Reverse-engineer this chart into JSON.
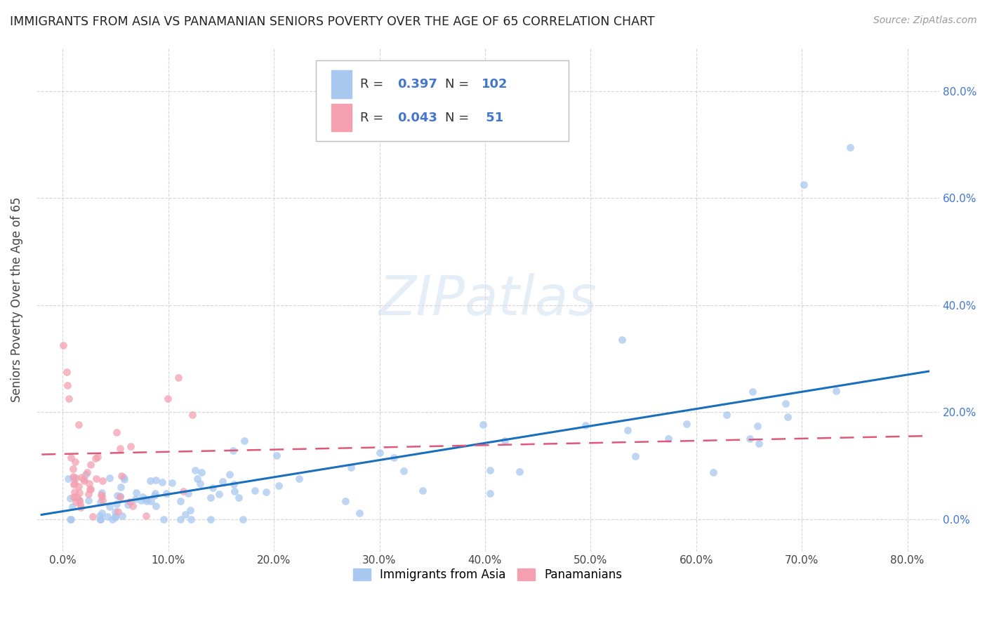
{
  "title": "IMMIGRANTS FROM ASIA VS PANAMANIAN SENIORS POVERTY OVER THE AGE OF 65 CORRELATION CHART",
  "source": "Source: ZipAtlas.com",
  "ylabel": "Seniors Poverty Over the Age of 65",
  "legend_label1": "Immigrants from Asia",
  "legend_label2": "Panamanians",
  "R1": 0.397,
  "N1": 102,
  "R2": 0.043,
  "N2": 51,
  "color1": "#a8c8f0",
  "color2": "#f4a0b0",
  "line_color1": "#1a6fbd",
  "line_color2": "#e05878",
  "background_color": "#ffffff",
  "watermark": "ZIPatlas",
  "right_tick_color": "#4477cc",
  "grid_color": "#cccccc"
}
